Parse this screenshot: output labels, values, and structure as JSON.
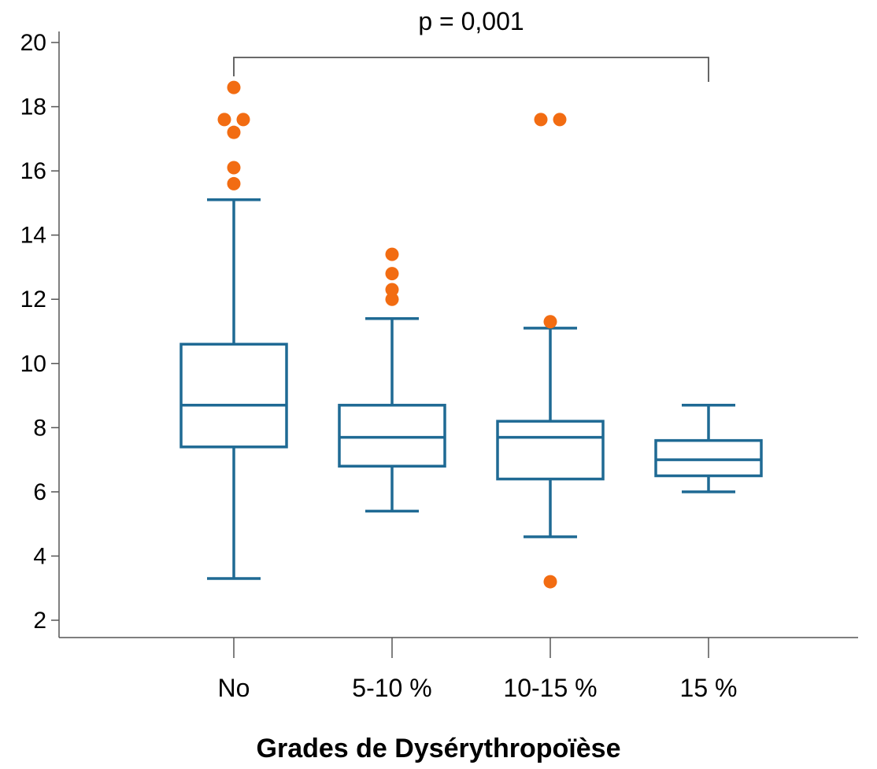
{
  "colors": {
    "box": "#1f6a94",
    "outlier": "#f26c12",
    "axis": "#555555"
  },
  "annotation": {
    "text": "p = 0,001",
    "from_category": "No",
    "to_category": "15 %"
  },
  "chart_data": {
    "type": "box",
    "title": "",
    "xlabel": "Grades de Dysérythropoïèse",
    "ylabel": "",
    "ylim": [
      1.5,
      20.5
    ],
    "yticks": [
      2,
      4,
      6,
      8,
      10,
      12,
      14,
      16,
      18,
      20
    ],
    "categories": [
      "No",
      "5-10 %",
      "10-15 %",
      "15 %"
    ],
    "boxes": [
      {
        "category": "No",
        "whisker_low": 3.3,
        "q1": 7.4,
        "median": 8.7,
        "q3": 10.6,
        "whisker_high": 15.1,
        "outliers": [
          15.6,
          16.1,
          17.2,
          17.6,
          17.6,
          18.6
        ]
      },
      {
        "category": "5-10 %",
        "whisker_low": 5.4,
        "q1": 6.8,
        "median": 7.7,
        "q3": 8.7,
        "whisker_high": 11.4,
        "outliers": [
          12.0,
          12.3,
          12.8,
          13.4
        ]
      },
      {
        "category": "10-15 %",
        "whisker_low": 4.6,
        "q1": 6.4,
        "median": 7.7,
        "q3": 8.2,
        "whisker_high": 11.1,
        "outliers": [
          3.2,
          11.3,
          17.6,
          17.6
        ]
      },
      {
        "category": "15 %",
        "whisker_low": 6.0,
        "q1": 6.5,
        "median": 7.0,
        "q3": 7.6,
        "whisker_high": 8.7,
        "outliers": []
      }
    ],
    "grid": false,
    "legend": "none"
  }
}
